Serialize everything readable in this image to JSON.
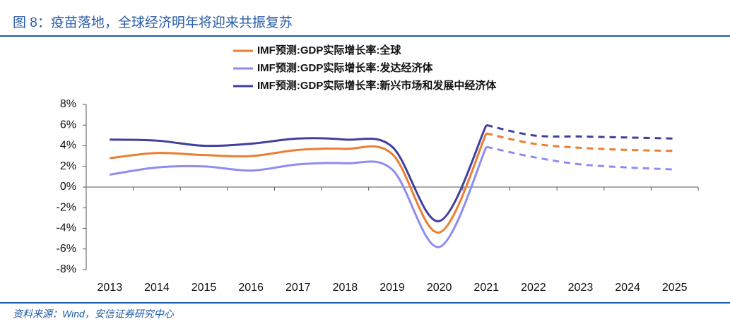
{
  "chart_data": {
    "type": "line",
    "title": "图 8：疫苗落地，全球经济明年将迎来共振复苏",
    "source": "资料来源：Wind，安信证券研究中心",
    "categories": [
      "2013",
      "2014",
      "2015",
      "2016",
      "2017",
      "2018",
      "2019",
      "2020",
      "2021",
      "2022",
      "2023",
      "2024",
      "2025"
    ],
    "forecast_from": "2021",
    "series": [
      {
        "name": "IMF预测:GDP实际增长率:全球",
        "color": "#ED7D31",
        "values": [
          2.8,
          3.3,
          3.1,
          3.0,
          3.6,
          3.7,
          3.2,
          -4.4,
          5.2,
          4.2,
          3.8,
          3.6,
          3.5
        ]
      },
      {
        "name": "IMF预测:GDP实际增长率:发达经济体",
        "color": "#8E8CF0",
        "values": [
          1.2,
          1.9,
          2.0,
          1.6,
          2.2,
          2.3,
          1.7,
          -5.8,
          3.9,
          2.9,
          2.2,
          1.9,
          1.7
        ]
      },
      {
        "name": "IMF预测:GDP实际增长率:新兴市场和发展中经济体",
        "color": "#3F3F9F",
        "values": [
          4.6,
          4.5,
          4.0,
          4.2,
          4.7,
          4.6,
          3.9,
          -3.3,
          6.0,
          5.0,
          4.9,
          4.8,
          4.7
        ]
      }
    ],
    "ylim": [
      -8,
      8
    ],
    "yticks": [
      {
        "value": 8,
        "label": "8%"
      },
      {
        "value": 6,
        "label": "6%"
      },
      {
        "value": 4,
        "label": "4%"
      },
      {
        "value": 2,
        "label": "2%"
      },
      {
        "value": 0,
        "label": "0%"
      },
      {
        "value": -2,
        "label": "-2%"
      },
      {
        "value": -4,
        "label": "-4%"
      },
      {
        "value": -6,
        "label": "-6%"
      },
      {
        "value": -8,
        "label": "-8%"
      }
    ]
  }
}
